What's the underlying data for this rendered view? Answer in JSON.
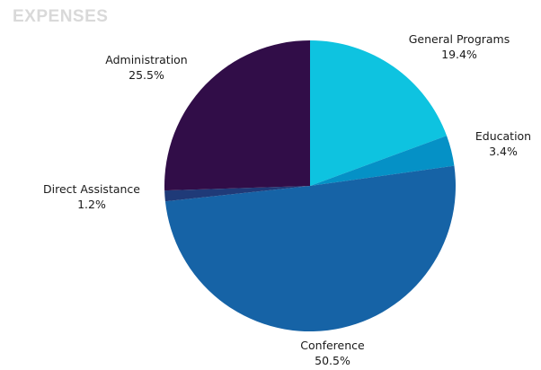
{
  "chart_data": {
    "type": "pie",
    "title": "EXPENSES",
    "start_angle_deg": 0,
    "direction": "clockwise",
    "slices": [
      {
        "label": "General Programs",
        "value": 19.4,
        "pct_text": "19.4%",
        "color": "#0ec3e0"
      },
      {
        "label": "Education",
        "value": 3.4,
        "pct_text": "3.4%",
        "color": "#0591c6"
      },
      {
        "label": "Conference",
        "value": 50.5,
        "pct_text": "50.5%",
        "color": "#1663a6"
      },
      {
        "label": "Direct Assistance",
        "value": 1.2,
        "pct_text": "1.2%",
        "color": "#1f3a78"
      },
      {
        "label": "Administration",
        "value": 25.5,
        "pct_text": "25.5%",
        "color": "#310d48"
      }
    ],
    "legend": "none"
  }
}
